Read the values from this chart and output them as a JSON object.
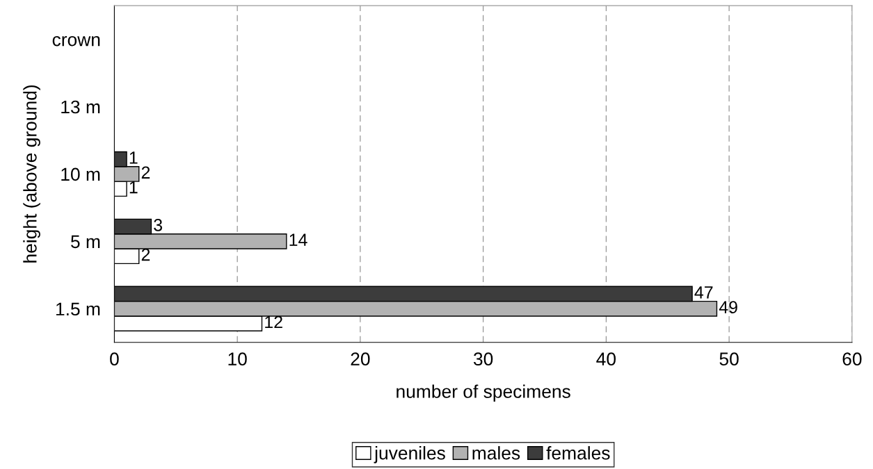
{
  "chart_data": {
    "type": "bar",
    "orientation": "horizontal",
    "xlabel": "number of specimens",
    "ylabel": "height (above ground)",
    "categories": [
      "crown",
      "13 m",
      "10 m",
      "5 m",
      "1.5 m"
    ],
    "series": [
      {
        "name": "juveniles",
        "color": "#ffffff",
        "values": [
          null,
          null,
          1,
          2,
          12
        ]
      },
      {
        "name": "males",
        "color": "#b2b2b2",
        "values": [
          null,
          null,
          2,
          14,
          49
        ]
      },
      {
        "name": "females",
        "color": "#3c3c3c",
        "values": [
          null,
          null,
          1,
          3,
          47
        ]
      }
    ],
    "xlim": [
      0,
      60
    ],
    "xticks": [
      0,
      10,
      20,
      30,
      40,
      50,
      60
    ],
    "grid": "x",
    "legend": "bottom",
    "data_labels": true
  }
}
